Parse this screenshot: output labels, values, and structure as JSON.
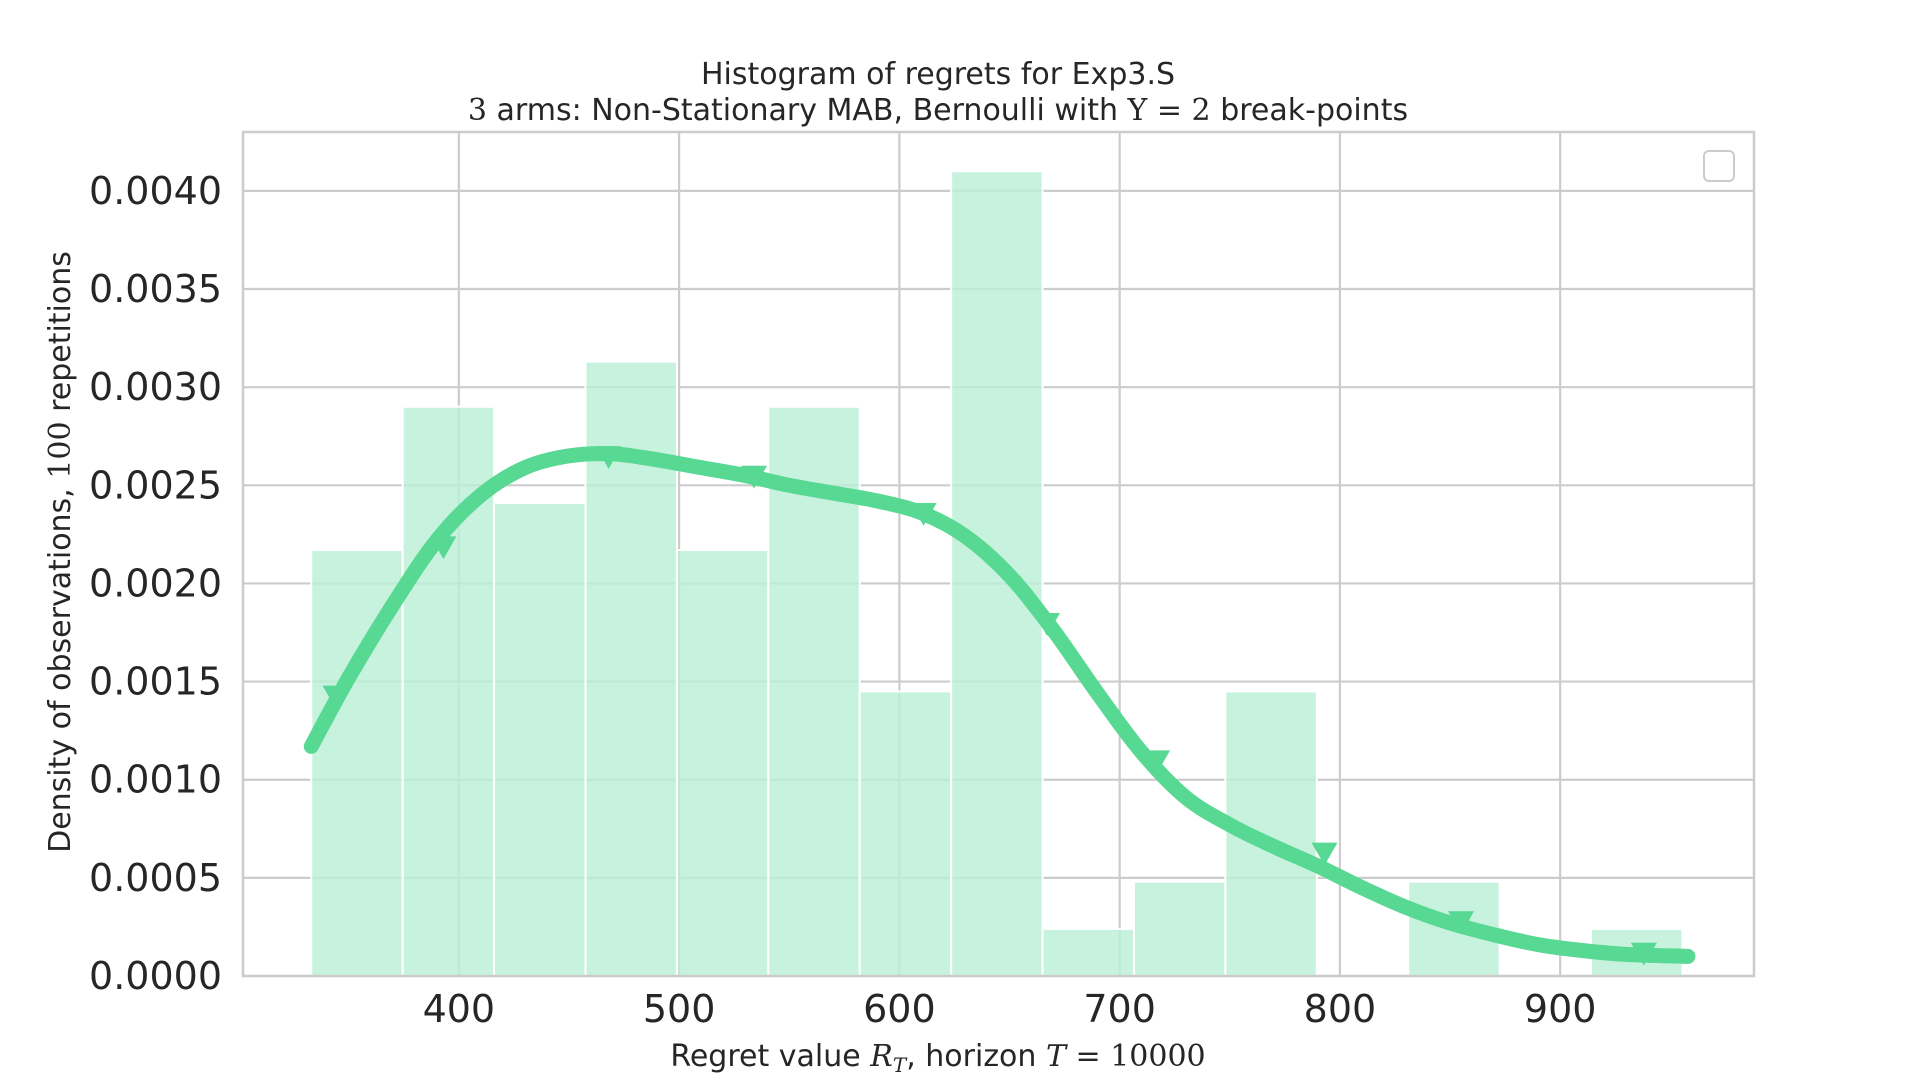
{
  "chart_data": {
    "type": "bar",
    "title": {
      "line1": "Histogram of regrets for Exp3.S",
      "line2_pre_math": "3",
      "line2_mid": " arms: Non-Stationary MAB, Bernoulli with ",
      "line2_math": "Υ = 2",
      "line2_post": " break-points"
    },
    "xlabel": {
      "pre": "Regret value ",
      "math1": "R",
      "math1_sub": "T",
      "mid": ", horizon ",
      "math2": "T",
      "math2_rest": " = 10000"
    },
    "ylabel": {
      "pre": "Density of observations, ",
      "math": "100",
      "post": " repetitions"
    },
    "xlim": [
      302,
      988
    ],
    "ylim": [
      0,
      0.0043
    ],
    "xticks": [
      400,
      500,
      600,
      700,
      800,
      900
    ],
    "yticks": [
      "0.0000",
      "0.0005",
      "0.0010",
      "0.0015",
      "0.0020",
      "0.0025",
      "0.0030",
      "0.0035",
      "0.0040"
    ],
    "ytick_values": [
      0,
      0.0005,
      0.001,
      0.0015,
      0.002,
      0.0025,
      0.003,
      0.0035,
      0.004
    ],
    "grid": true,
    "legend": "top-right, empty",
    "bar_color": "#bbefd6",
    "kde_color": "#57d893",
    "bins": [
      {
        "x0": 333,
        "x1": 374.5,
        "density": 0.00217
      },
      {
        "x0": 374.5,
        "x1": 416,
        "density": 0.0029
      },
      {
        "x0": 416,
        "x1": 457.5,
        "density": 0.00241
      },
      {
        "x0": 457.5,
        "x1": 499,
        "density": 0.00313
      },
      {
        "x0": 499,
        "x1": 540.5,
        "density": 0.00217
      },
      {
        "x0": 540.5,
        "x1": 582,
        "density": 0.0029
      },
      {
        "x0": 582,
        "x1": 623.5,
        "density": 0.00145
      },
      {
        "x0": 623.5,
        "x1": 665,
        "density": 0.0041
      },
      {
        "x0": 665,
        "x1": 706.5,
        "density": 0.00024
      },
      {
        "x0": 706.5,
        "x1": 748,
        "density": 0.00048
      },
      {
        "x0": 748,
        "x1": 789.5,
        "density": 0.00145
      },
      {
        "x0": 789.5,
        "x1": 831,
        "density": 0
      },
      {
        "x0": 831,
        "x1": 872.5,
        "density": 0.00048
      },
      {
        "x0": 872.5,
        "x1": 914,
        "density": 0
      },
      {
        "x0": 914,
        "x1": 955.5,
        "density": 0.00024
      }
    ],
    "kde": {
      "x": [
        333,
        350,
        370,
        390,
        410,
        430,
        450,
        470,
        490,
        510,
        530,
        550,
        570,
        590,
        610,
        630,
        650,
        670,
        690,
        710,
        730,
        750,
        770,
        790,
        810,
        830,
        850,
        870,
        890,
        910,
        930,
        958
      ],
      "y": [
        0.00117,
        0.00152,
        0.00189,
        0.00222,
        0.00245,
        0.00259,
        0.00265,
        0.00266,
        0.00263,
        0.00259,
        0.00255,
        0.0025,
        0.00246,
        0.00242,
        0.00236,
        0.00224,
        0.00204,
        0.00176,
        0.00144,
        0.00114,
        0.00091,
        0.00077,
        0.00066,
        0.00056,
        0.00045,
        0.00035,
        0.00027,
        0.00021,
        0.00016,
        0.00013,
        0.00011,
        0.0001
      ]
    },
    "markers": {
      "x": [
        344,
        393,
        468,
        534,
        611,
        667,
        717,
        793,
        855,
        938
      ],
      "y": [
        0.00143,
        0.00219,
        0.00265,
        0.00255,
        0.00236,
        0.0018,
        0.0011,
        0.00063,
        0.00028,
        0.00012
      ]
    }
  }
}
